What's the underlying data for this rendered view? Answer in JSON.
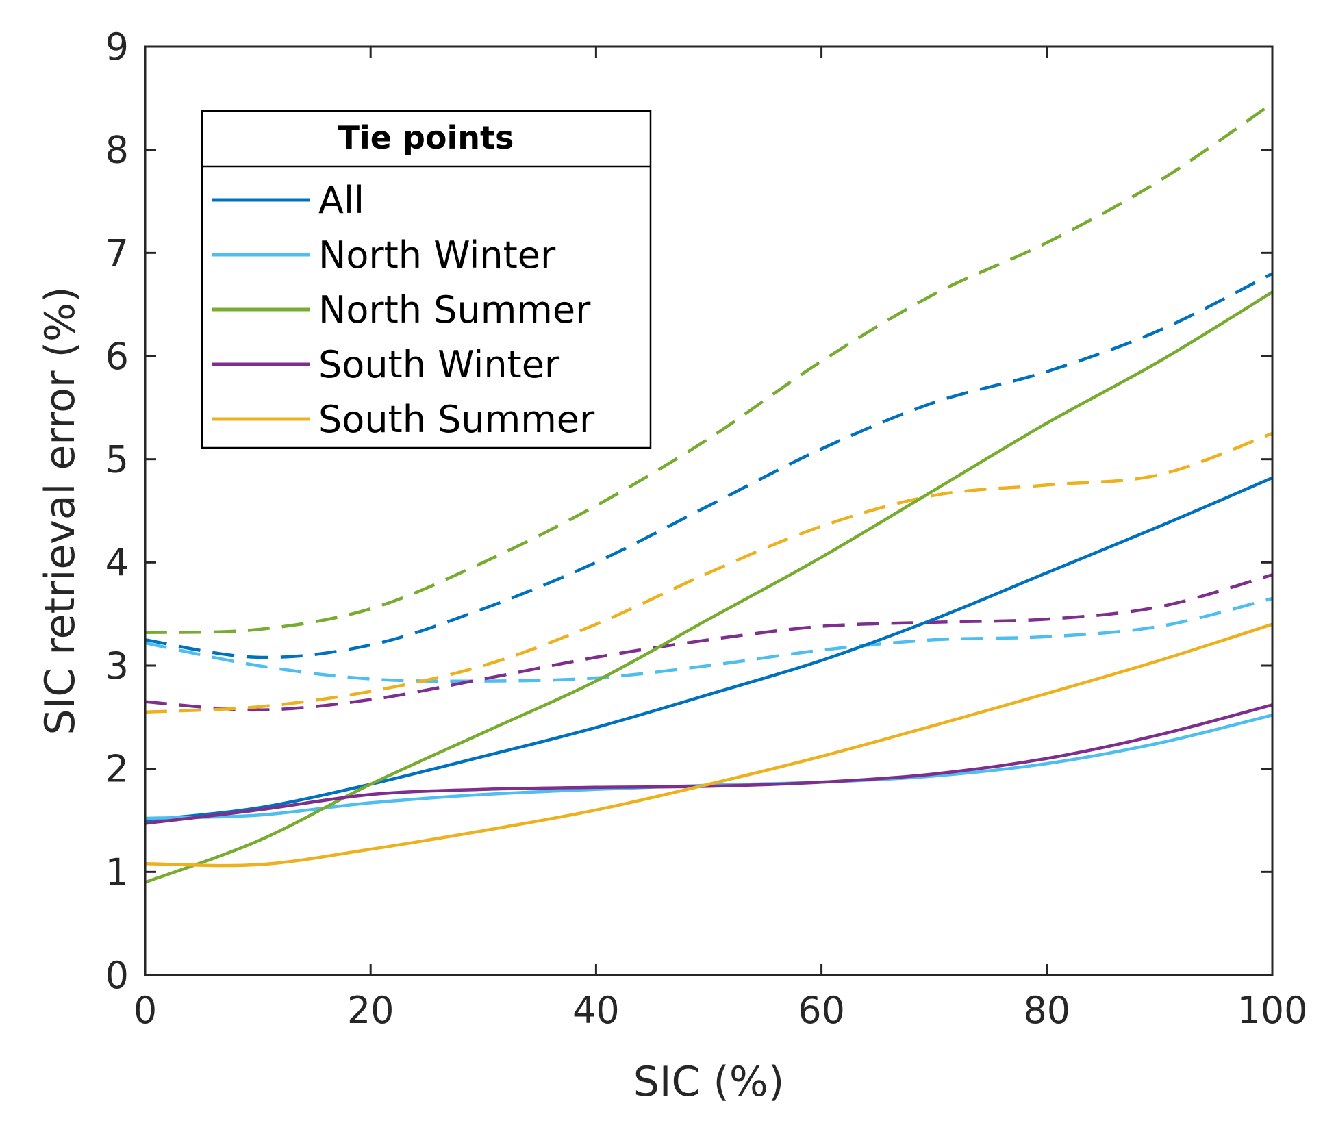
{
  "chart_data": {
    "type": "line",
    "title": "",
    "xlabel": "SIC (%)",
    "ylabel": "SIC retrieval error (%)",
    "xlim": [
      0,
      100
    ],
    "ylim": [
      0,
      9
    ],
    "xticks": [
      "0",
      "20",
      "40",
      "60",
      "80",
      "100"
    ],
    "yticks": [
      "0",
      "1",
      "2",
      "3",
      "4",
      "5",
      "6",
      "7",
      "8",
      "9"
    ],
    "grid": false,
    "legend": {
      "title": "Tie points",
      "placement": "top-left",
      "entries": [
        "All",
        "North Winter",
        "North Summer",
        "South Winter",
        "South Summer"
      ]
    },
    "x": [
      0,
      10,
      20,
      30,
      40,
      50,
      60,
      70,
      80,
      90,
      100
    ],
    "series": [
      {
        "name": "All",
        "style": "solid",
        "color": "#0072BD",
        "values": [
          1.5,
          1.62,
          1.85,
          2.12,
          2.4,
          2.72,
          3.05,
          3.45,
          3.9,
          4.35,
          4.82
        ]
      },
      {
        "name": "North Winter",
        "style": "solid",
        "color": "#4DBEEE",
        "values": [
          1.52,
          1.55,
          1.67,
          1.75,
          1.8,
          1.84,
          1.87,
          1.93,
          2.05,
          2.25,
          2.52
        ]
      },
      {
        "name": "North Summer",
        "style": "solid",
        "color": "#77AC30",
        "values": [
          0.9,
          1.3,
          1.85,
          2.35,
          2.85,
          3.45,
          4.05,
          4.7,
          5.35,
          5.95,
          6.62
        ]
      },
      {
        "name": "South Winter",
        "style": "solid",
        "color": "#7E2F8E",
        "values": [
          1.47,
          1.6,
          1.75,
          1.8,
          1.82,
          1.83,
          1.87,
          1.95,
          2.1,
          2.33,
          2.62
        ]
      },
      {
        "name": "South Summer",
        "style": "solid",
        "color": "#EDB120",
        "values": [
          1.08,
          1.07,
          1.22,
          1.4,
          1.6,
          1.85,
          2.12,
          2.42,
          2.73,
          3.05,
          3.4
        ]
      },
      {
        "name": "All (dashed)",
        "style": "dashed",
        "color": "#0072BD",
        "values": [
          3.25,
          3.08,
          3.2,
          3.55,
          4.0,
          4.55,
          5.1,
          5.55,
          5.85,
          6.25,
          6.8
        ]
      },
      {
        "name": "North Winter (dashed)",
        "style": "dashed",
        "color": "#4DBEEE",
        "values": [
          3.22,
          3.0,
          2.87,
          2.85,
          2.88,
          3.0,
          3.15,
          3.25,
          3.28,
          3.38,
          3.65
        ]
      },
      {
        "name": "North Summer (dashed)",
        "style": "dashed",
        "color": "#77AC30",
        "values": [
          3.32,
          3.35,
          3.55,
          4.0,
          4.55,
          5.2,
          5.95,
          6.6,
          7.1,
          7.7,
          8.45
        ]
      },
      {
        "name": "South Winter (dashed)",
        "style": "dashed",
        "color": "#7E2F8E",
        "values": [
          2.65,
          2.57,
          2.67,
          2.87,
          3.08,
          3.25,
          3.38,
          3.42,
          3.45,
          3.57,
          3.88
        ]
      },
      {
        "name": "South Summer (dashed)",
        "style": "dashed",
        "color": "#EDB120",
        "values": [
          2.55,
          2.6,
          2.75,
          3.0,
          3.4,
          3.9,
          4.35,
          4.65,
          4.75,
          4.85,
          5.25
        ]
      }
    ]
  }
}
